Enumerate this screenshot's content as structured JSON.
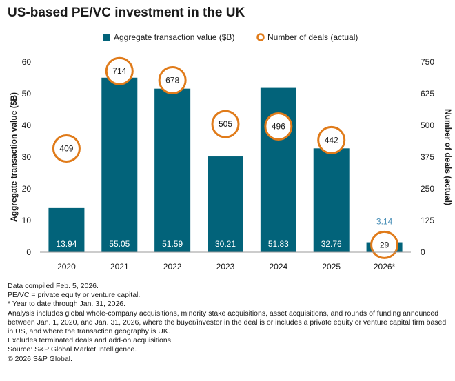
{
  "title": "US-based PE/VC investment in the UK",
  "colors": {
    "bar": "#02637a",
    "circle": "#e07b1a",
    "axis": "#9a9a9a",
    "low_label": "#4a90b8"
  },
  "chart_data": {
    "type": "bar",
    "categories": [
      "2020",
      "2021",
      "2022",
      "2023",
      "2024",
      "2025",
      "2026*"
    ],
    "series": [
      {
        "name": "Aggregate transaction value ($B)",
        "axis": "left",
        "values": [
          13.94,
          55.05,
          51.59,
          30.21,
          51.83,
          32.76,
          3.14
        ],
        "labels": [
          "13.94",
          "55.05",
          "51.59",
          "30.21",
          "51.83",
          "32.76",
          "3.14"
        ]
      },
      {
        "name": "Number of deals (actual)",
        "axis": "right",
        "marker": "circle",
        "values": [
          409,
          714,
          678,
          505,
          496,
          442,
          29
        ],
        "labels": [
          "409",
          "714",
          "678",
          "505",
          "496",
          "442",
          "29"
        ]
      }
    ],
    "ylabel": "Aggregate transaction value ($B)",
    "y2label": "Number of deals (actual)",
    "ylim": [
      0,
      60
    ],
    "y2lim": [
      0,
      750
    ],
    "yticks": [
      "0",
      "10",
      "20",
      "30",
      "40",
      "50",
      "60"
    ],
    "y2ticks": [
      "0",
      "125",
      "250",
      "375",
      "500",
      "625",
      "750"
    ],
    "legend_position": "top"
  },
  "notes": [
    "Data compiled Feb. 5, 2026.",
    "PE/VC = private equity or venture capital.",
    "* Year to date through Jan. 31, 2026.",
    "Analysis includes global whole-company acquisitions, minority stake acquisitions, asset acquisitions, and rounds of funding announced between Jan. 1, 2020, and Jan. 31, 2026, where the buyer/investor in the deal is or includes a private equity or venture capital firm based in US, and where the transaction geography is UK.",
    "Excludes terminated deals and add-on acquisitions.",
    "Source: S&P Global Market Intelligence.",
    "© 2026 S&P Global."
  ]
}
